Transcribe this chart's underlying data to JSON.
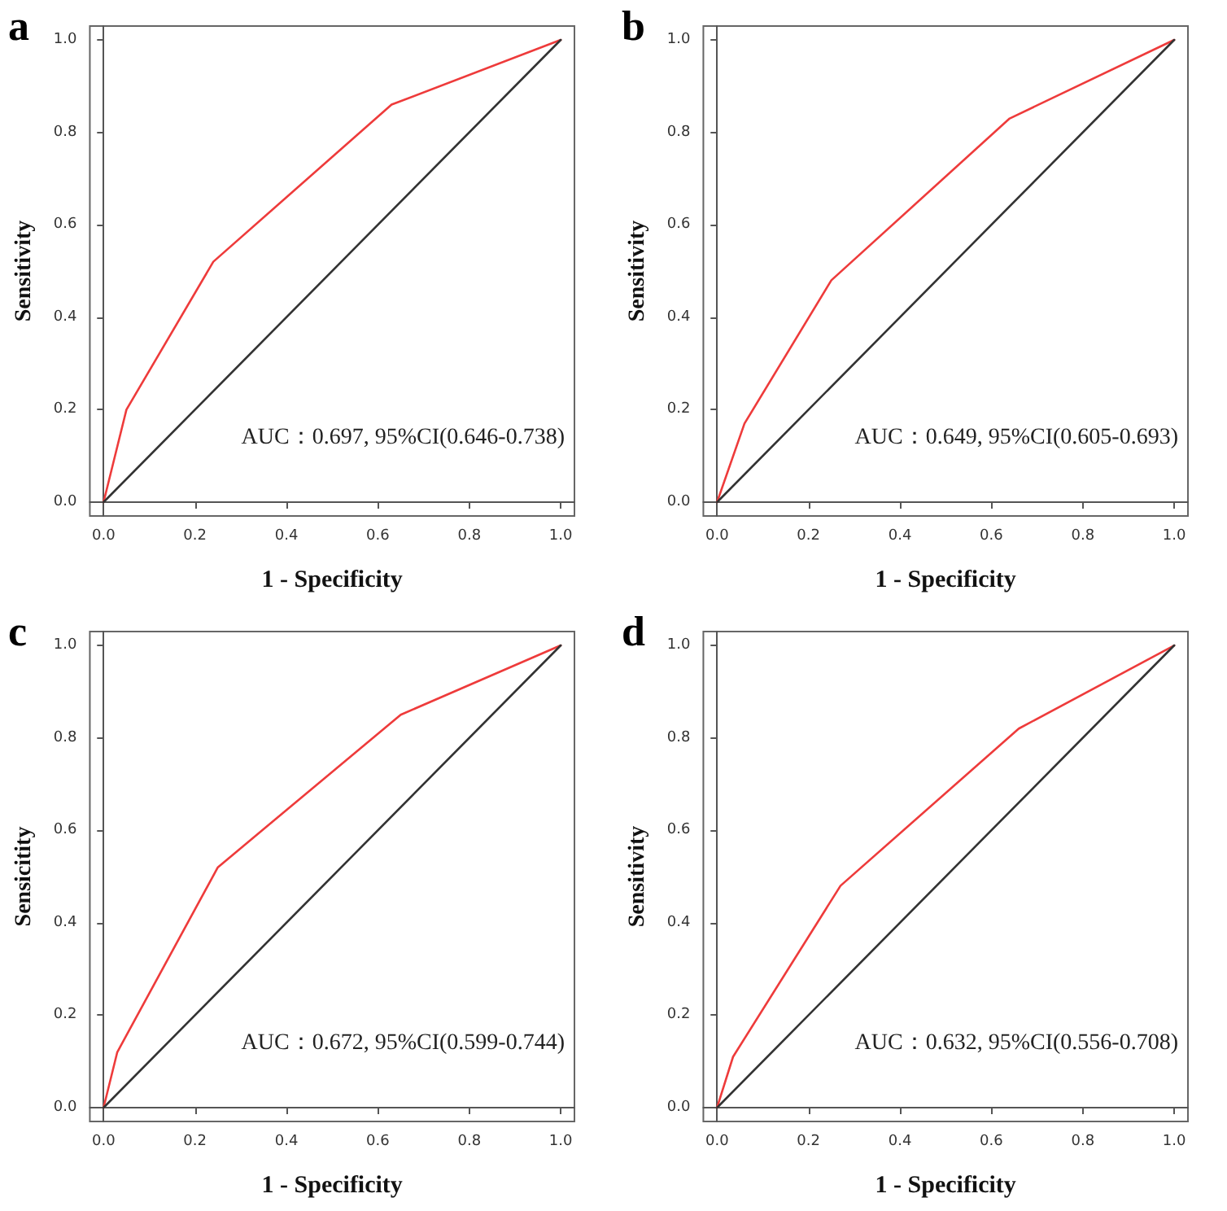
{
  "chart_data": [
    {
      "type": "line",
      "title": "a",
      "xlabel": "1 - Specificity",
      "ylabel": "Sensitivity",
      "annotations": [
        "AUC：0.697, 95%CI(0.646-0.738)"
      ],
      "xlim": [
        -0.03,
        1.03
      ],
      "ylim": [
        -0.03,
        1.03
      ],
      "xticks": [
        {
          "value": 0,
          "label": "0.0"
        },
        {
          "value": 0.2,
          "label": "0.2"
        },
        {
          "value": 0.4,
          "label": "0.4"
        },
        {
          "value": 0.6,
          "label": "0.6"
        },
        {
          "value": 0.8,
          "label": "0.8"
        },
        {
          "value": 1,
          "label": "1.0"
        }
      ],
      "yticks": [
        {
          "value": 0,
          "label": "0.0"
        },
        {
          "value": 0.2,
          "label": "0.2"
        },
        {
          "value": 0.4,
          "label": "0.4"
        },
        {
          "value": 0.6,
          "label": "0.6"
        },
        {
          "value": 0.8,
          "label": "0.8"
        },
        {
          "value": 1,
          "label": "1.0"
        }
      ],
      "marker": "none",
      "line_style": "solid",
      "series": [
        {
          "color": "#ee3b3b",
          "x": [
            0,
            0.05,
            0.24,
            0.63,
            1
          ],
          "values": [
            0,
            0.2,
            0.52,
            0.86,
            1
          ]
        },
        {
          "color": "#333333",
          "x": [
            0,
            1
          ],
          "values": [
            0,
            1
          ]
        }
      ]
    },
    {
      "type": "line",
      "title": "b",
      "xlabel": "1 - Specificity",
      "ylabel": "Sensitivity",
      "annotations": [
        "AUC：0.649, 95%CI(0.605-0.693)"
      ],
      "xlim": [
        -0.03,
        1.03
      ],
      "ylim": [
        -0.03,
        1.03
      ],
      "xticks": [
        {
          "value": 0,
          "label": "0.0"
        },
        {
          "value": 0.2,
          "label": "0.2"
        },
        {
          "value": 0.4,
          "label": "0.4"
        },
        {
          "value": 0.6,
          "label": "0.6"
        },
        {
          "value": 0.8,
          "label": "0.8"
        },
        {
          "value": 1,
          "label": "1.0"
        }
      ],
      "yticks": [
        {
          "value": 0,
          "label": "0.0"
        },
        {
          "value": 0.2,
          "label": "0.2"
        },
        {
          "value": 0.4,
          "label": "0.4"
        },
        {
          "value": 0.6,
          "label": "0.6"
        },
        {
          "value": 0.8,
          "label": "0.8"
        },
        {
          "value": 1,
          "label": "1.0"
        }
      ],
      "marker": "none",
      "line_style": "solid",
      "series": [
        {
          "color": "#ee3b3b",
          "x": [
            0,
            0.06,
            0.25,
            0.64,
            1
          ],
          "values": [
            0,
            0.17,
            0.48,
            0.83,
            1
          ]
        },
        {
          "color": "#333333",
          "x": [
            0,
            1
          ],
          "values": [
            0,
            1
          ]
        }
      ]
    },
    {
      "type": "line",
      "title": "c",
      "xlabel": "1 - Specificity",
      "ylabel": "Sensicitity",
      "annotations": [
        "AUC：0.672, 95%CI(0.599-0.744)"
      ],
      "xlim": [
        -0.03,
        1.03
      ],
      "ylim": [
        -0.03,
        1.03
      ],
      "xticks": [
        {
          "value": 0,
          "label": "0.0"
        },
        {
          "value": 0.2,
          "label": "0.2"
        },
        {
          "value": 0.4,
          "label": "0.4"
        },
        {
          "value": 0.6,
          "label": "0.6"
        },
        {
          "value": 0.8,
          "label": "0.8"
        },
        {
          "value": 1,
          "label": "1.0"
        }
      ],
      "yticks": [
        {
          "value": 0,
          "label": "0.0"
        },
        {
          "value": 0.2,
          "label": "0.2"
        },
        {
          "value": 0.4,
          "label": "0.4"
        },
        {
          "value": 0.6,
          "label": "0.6"
        },
        {
          "value": 0.8,
          "label": "0.8"
        },
        {
          "value": 1,
          "label": "1.0"
        }
      ],
      "marker": "none",
      "line_style": "solid",
      "series": [
        {
          "color": "#ee3b3b",
          "x": [
            0,
            0.03,
            0.25,
            0.65,
            1
          ],
          "values": [
            0,
            0.12,
            0.52,
            0.85,
            1
          ]
        },
        {
          "color": "#333333",
          "x": [
            0,
            1
          ],
          "values": [
            0,
            1
          ]
        }
      ]
    },
    {
      "type": "line",
      "title": "d",
      "xlabel": "1 - Specificity",
      "ylabel": "Sensitivity",
      "annotations": [
        "AUC：0.632, 95%CI(0.556-0.708)"
      ],
      "xlim": [
        -0.03,
        1.03
      ],
      "ylim": [
        -0.03,
        1.03
      ],
      "xticks": [
        {
          "value": 0,
          "label": "0.0"
        },
        {
          "value": 0.2,
          "label": "0.2"
        },
        {
          "value": 0.4,
          "label": "0.4"
        },
        {
          "value": 0.6,
          "label": "0.6"
        },
        {
          "value": 0.8,
          "label": "0.8"
        },
        {
          "value": 1,
          "label": "1.0"
        }
      ],
      "yticks": [
        {
          "value": 0,
          "label": "0.0"
        },
        {
          "value": 0.2,
          "label": "0.2"
        },
        {
          "value": 0.4,
          "label": "0.4"
        },
        {
          "value": 0.6,
          "label": "0.6"
        },
        {
          "value": 0.8,
          "label": "0.8"
        },
        {
          "value": 1,
          "label": "1.0"
        }
      ],
      "marker": "none",
      "line_style": "solid",
      "series": [
        {
          "color": "#ee3b3b",
          "x": [
            0,
            0.035,
            0.27,
            0.66,
            1
          ],
          "values": [
            0,
            0.11,
            0.48,
            0.82,
            1
          ]
        },
        {
          "color": "#333333",
          "x": [
            0,
            1
          ],
          "values": [
            0,
            1
          ]
        }
      ]
    }
  ]
}
